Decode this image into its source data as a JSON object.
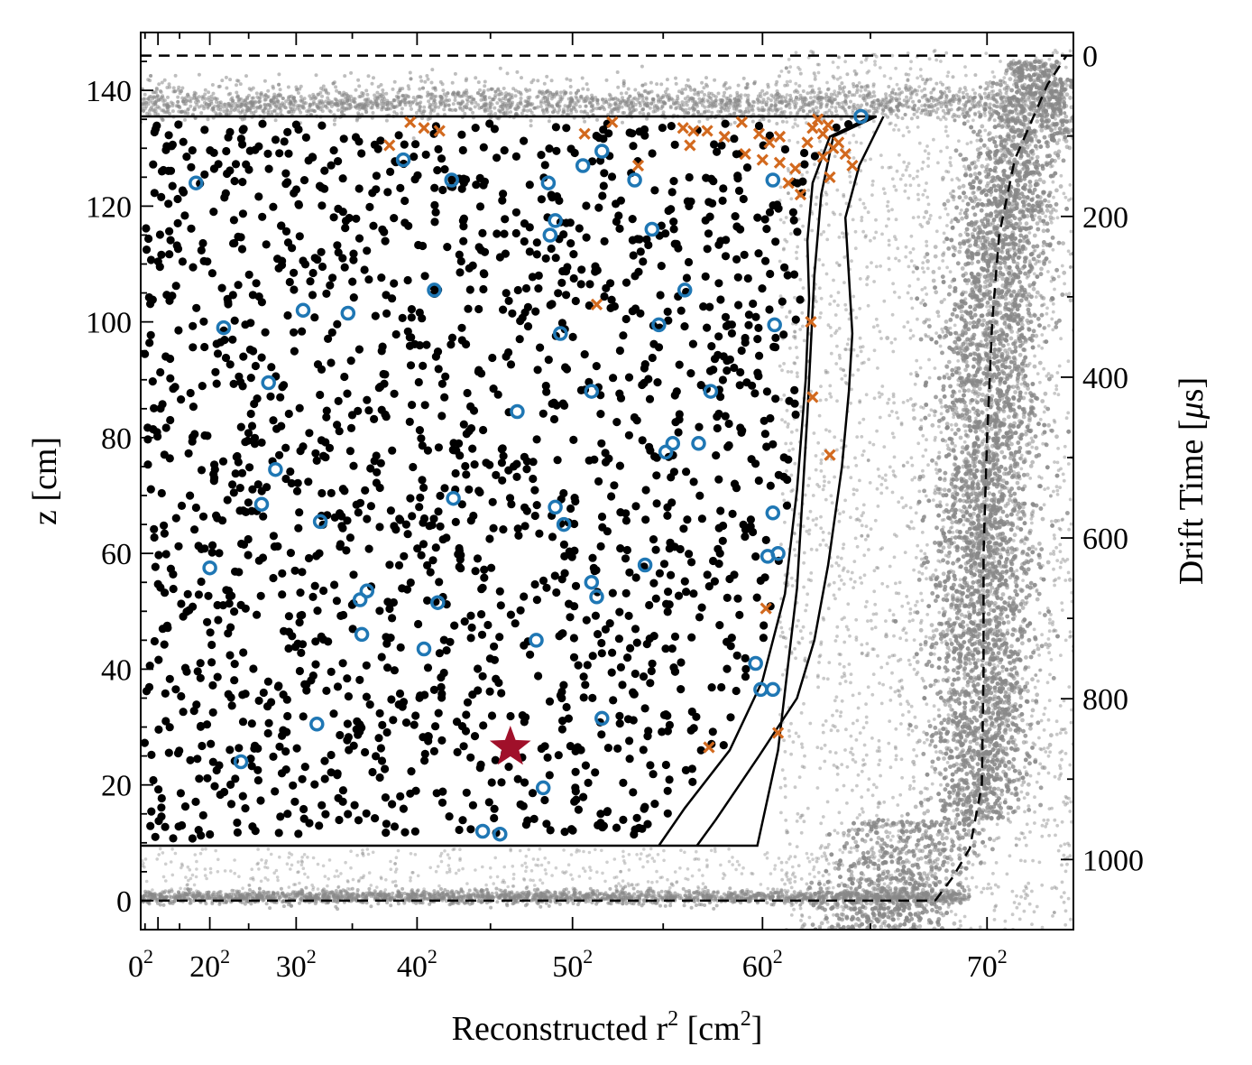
{
  "chart_data": {
    "type": "scatter",
    "xlabel": "Reconstructed r",
    "xlabel_sup": "2",
    "xlabel_unit": " [cm",
    "xlabel_unit_sup": "2",
    "xlabel_end": "]",
    "ylabel": "z [cm]",
    "y2label": "Drift Time [",
    "y2label_mu": "μ",
    "y2label_end": "s]",
    "xlim": [
      0,
      5400
    ],
    "ylim": [
      -5,
      150
    ],
    "y2_ticks": [
      {
        "value": 0,
        "label": "0"
      },
      {
        "value": 200,
        "label": "200"
      },
      {
        "value": 400,
        "label": "400"
      },
      {
        "value": 600,
        "label": "600"
      },
      {
        "value": 800,
        "label": "800"
      },
      {
        "value": 1000,
        "label": "1000"
      }
    ],
    "y2_mapping": {
      "z_at_zero_time": 146,
      "us_per_cm": 7.2
    },
    "x_ticks": [
      {
        "value": 0,
        "base": "0",
        "sup": "2"
      },
      {
        "value": 400,
        "base": "20",
        "sup": "2"
      },
      {
        "value": 900,
        "base": "30",
        "sup": "2"
      },
      {
        "value": 1600,
        "base": "40",
        "sup": "2"
      },
      {
        "value": 2500,
        "base": "50",
        "sup": "2"
      },
      {
        "value": 3600,
        "base": "60",
        "sup": "2"
      },
      {
        "value": 4900,
        "base": "70",
        "sup": "2"
      }
    ],
    "y_ticks": [
      0,
      20,
      40,
      60,
      80,
      100,
      120,
      140
    ],
    "colors": {
      "background_events": "#888888",
      "events_in_fv": "#000000",
      "open_markers": "#1f77b4",
      "cross_markers": "#d2691e",
      "star": "#a0102a"
    },
    "fiducial_volume": {
      "z_range": [
        9.5,
        135.5
      ],
      "outline": [
        [
          0,
          9.5
        ],
        [
          3570,
          9.5
        ],
        [
          3690,
          26
        ],
        [
          3800,
          54
        ],
        [
          3860,
          84
        ],
        [
          3900,
          108
        ],
        [
          3940,
          122
        ],
        [
          4010,
          132
        ],
        [
          4260,
          135.5
        ],
        [
          0,
          135.5
        ]
      ]
    },
    "inner_boundary": [
      [
        3000,
        9.5
      ],
      [
        3150,
        16
      ],
      [
        3410,
        26
      ],
      [
        3600,
        38
      ],
      [
        3730,
        53
      ],
      [
        3800,
        71
      ],
      [
        3850,
        90
      ],
      [
        3870,
        104
      ],
      [
        3860,
        114
      ],
      [
        3890,
        124
      ],
      [
        3990,
        132
      ],
      [
        4230,
        135.5
      ]
    ],
    "outer_boundary": [
      [
        3220,
        9.5
      ],
      [
        3330,
        14
      ],
      [
        3580,
        25
      ],
      [
        3800,
        35
      ],
      [
        3900,
        45
      ],
      [
        3980,
        58
      ],
      [
        4060,
        75
      ],
      [
        4100,
        88
      ],
      [
        4120,
        98
      ],
      [
        4100,
        108
      ],
      [
        4080,
        118
      ],
      [
        4160,
        127
      ],
      [
        4300,
        135.5
      ]
    ],
    "field_edge_dashed": [
      [
        4600,
        0
      ],
      [
        4700,
        4
      ],
      [
        4800,
        9
      ],
      [
        4870,
        20
      ],
      [
        4880,
        40
      ],
      [
        4880,
        60
      ],
      [
        4900,
        80
      ],
      [
        4930,
        100
      ],
      [
        4970,
        115
      ],
      [
        5060,
        128
      ],
      [
        5250,
        141
      ],
      [
        5360,
        146
      ]
    ],
    "cathode_line": {
      "z": 0,
      "x_range": [
        0,
        4600
      ]
    },
    "gate_line": {
      "z": 146,
      "x_range": [
        0,
        5400
      ]
    },
    "n_events_in_fv": 1750,
    "events_open_markers": [
      [
        320,
        124
      ],
      [
        480,
        99
      ],
      [
        940,
        102
      ],
      [
        1200,
        101.5
      ],
      [
        1520,
        128
      ],
      [
        1800,
        124.5
      ],
      [
        1700,
        105.5
      ],
      [
        2360,
        124
      ],
      [
        2400,
        117.5
      ],
      [
        2370,
        115
      ],
      [
        2560,
        127
      ],
      [
        2670,
        129.5
      ],
      [
        2860,
        124.5
      ],
      [
        2960,
        116
      ],
      [
        3150,
        105.5
      ],
      [
        3000,
        99.5
      ],
      [
        2430,
        98
      ],
      [
        2610,
        88
      ],
      [
        2180,
        84.5
      ],
      [
        3300,
        88
      ],
      [
        3040,
        77.5
      ],
      [
        3080,
        79
      ],
      [
        3230,
        79
      ],
      [
        3670,
        99.5
      ],
      [
        3660,
        67
      ],
      [
        3630,
        59.5
      ],
      [
        3690,
        60
      ],
      [
        2400,
        68
      ],
      [
        2450,
        65
      ],
      [
        2610,
        55
      ],
      [
        2640,
        52.5
      ],
      [
        2920,
        58
      ],
      [
        1810,
        69.5
      ],
      [
        1040,
        65.5
      ],
      [
        740,
        89.5
      ],
      [
        780,
        74.5
      ],
      [
        700,
        68.5
      ],
      [
        400,
        57.5
      ],
      [
        1310,
        53.5
      ],
      [
        1270,
        52
      ],
      [
        1720,
        51.5
      ],
      [
        1640,
        43.5
      ],
      [
        1280,
        46
      ],
      [
        2290,
        45
      ],
      [
        3560,
        41
      ],
      [
        3590,
        36.5
      ],
      [
        3660,
        36.5
      ],
      [
        1020,
        30.5
      ],
      [
        2670,
        31.5
      ],
      [
        580,
        24
      ],
      [
        2330,
        19.5
      ],
      [
        1980,
        12
      ],
      [
        2080,
        11.5
      ],
      [
        4170,
        135.5
      ],
      [
        3660,
        124.5
      ]
    ],
    "events_cross_markers": [
      [
        1560,
        134.5
      ],
      [
        1640,
        133.5
      ],
      [
        1730,
        133
      ],
      [
        1440,
        130.5
      ],
      [
        2570,
        132.5
      ],
      [
        2730,
        134.5
      ],
      [
        2880,
        127
      ],
      [
        3140,
        133.5
      ],
      [
        3180,
        130.5
      ],
      [
        3200,
        133
      ],
      [
        3280,
        133
      ],
      [
        3380,
        132
      ],
      [
        3480,
        134.5
      ],
      [
        3500,
        129
      ],
      [
        3580,
        132.5
      ],
      [
        3600,
        128
      ],
      [
        3640,
        131
      ],
      [
        3700,
        127.5
      ],
      [
        3750,
        124
      ],
      [
        3790,
        126.5
      ],
      [
        3860,
        131
      ],
      [
        3890,
        133.5
      ],
      [
        3920,
        135
      ],
      [
        3950,
        132.5
      ],
      [
        3980,
        134
      ],
      [
        4010,
        130
      ],
      [
        4040,
        131
      ],
      [
        4080,
        129
      ],
      [
        4120,
        127
      ],
      [
        3950,
        128.5
      ],
      [
        3990,
        125
      ],
      [
        3820,
        122
      ],
      [
        3700,
        132
      ],
      [
        3880,
        100
      ],
      [
        3890,
        87
      ],
      [
        3990,
        77
      ],
      [
        2640,
        103
      ],
      [
        3290,
        26.5
      ],
      [
        3620,
        50.5
      ],
      [
        3690,
        29
      ]
    ],
    "star_event": [
      2140,
      26.5
    ]
  }
}
